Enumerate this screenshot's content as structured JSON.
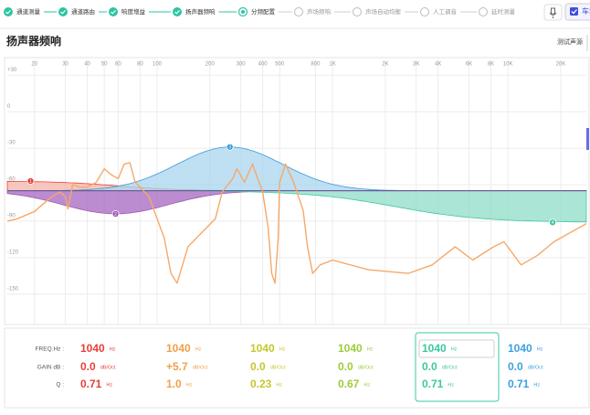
{
  "steps": [
    "通道测量",
    "通道路由",
    "响度增益",
    "扬声器频响",
    "分频配置",
    "声场频响",
    "声场自动均衡",
    "人工调音",
    "延时测量"
  ],
  "current_step": 4,
  "toolbar": {
    "checkbox": "车载"
  },
  "section": {
    "title": "扬声器频响",
    "button": "测试声源"
  },
  "chart_data": {
    "type": "line",
    "xlim": [
      14,
      28000
    ],
    "ylim": [
      -175,
      43
    ],
    "log_x": true,
    "grid": true,
    "xticks": [
      20,
      30,
      40,
      50,
      60,
      80,
      100,
      200,
      300,
      400,
      500,
      800,
      {
        "value": 1000,
        "label": "1K"
      },
      {
        "value": 2000,
        "label": "2K"
      },
      {
        "value": 3000,
        "label": "3K"
      },
      {
        "value": 4000,
        "label": "4K"
      },
      {
        "value": 6000,
        "label": "6K"
      },
      {
        "value": 8000,
        "label": "8K"
      },
      {
        "value": 10000,
        "label": "10K"
      },
      {
        "value": 20000,
        "label": "20K"
      }
    ],
    "yticks": [
      {
        "value": 30,
        "label": "+30"
      },
      0,
      -30,
      -60,
      -90,
      -120,
      -150
    ],
    "baseline": -65,
    "filters": [
      {
        "name": "1",
        "type": "lowshelf",
        "freq": 19,
        "level": -57,
        "color": "#e8403a",
        "fill": "#f6b3a8"
      },
      {
        "name": "2",
        "type": "peak",
        "freq": 58,
        "level": -84,
        "color": "#9b59b6",
        "fill": "#a565c0"
      },
      {
        "name": "3",
        "type": "peak",
        "freq": 260,
        "level": -29,
        "color": "#3a9ad9",
        "fill": "#a9d4ee"
      },
      {
        "name": "4",
        "type": "highshelf",
        "freq": 18000,
        "level": -91,
        "color": "#3cc8a0",
        "fill": "#8fdcc8"
      }
    ],
    "series": [
      {
        "color": "#f5a96a",
        "x": [
          14,
          16,
          20,
          25,
          28,
          30,
          31,
          33,
          36,
          40,
          45,
          50,
          55,
          60,
          65,
          70,
          75,
          80,
          90,
          100,
          110,
          120,
          130,
          150,
          215,
          235,
          270,
          285,
          315,
          350,
          375,
          400,
          430,
          450,
          470,
          490,
          500,
          540,
          600,
          680,
          720,
          770,
          850,
          1000,
          1600,
          2700,
          3700,
          5000,
          6300,
          8300,
          9500,
          11900,
          14800,
          18300,
          28000
        ],
        "values": [
          -90,
          -88,
          -82,
          -70,
          -66,
          -70,
          -80,
          -60,
          -62,
          -62,
          -58,
          -47,
          -52,
          -55,
          -43,
          -42,
          -58,
          -62,
          -70,
          -88,
          -104,
          -133,
          -141,
          -111,
          -88,
          -66,
          -55,
          -47,
          -58,
          -43,
          -55,
          -66,
          -96,
          -133,
          -141,
          -104,
          -58,
          -43,
          -58,
          -81,
          -111,
          -133,
          -126,
          -122,
          -130,
          -133,
          -126,
          -111,
          -122,
          -111,
          -107,
          -126,
          -118,
          -107,
          -92
        ]
      }
    ]
  },
  "table": {
    "rows": [
      {
        "label": "FREQ.Hz :",
        "unit": "Hz"
      },
      {
        "label": "GAIN dB :",
        "unit": "dB/Oct"
      },
      {
        "label": "Q :",
        "unit": "Hz"
      }
    ],
    "selected_column": 4,
    "columns": [
      {
        "color": "#e8403a",
        "values": [
          "1040",
          "0.0",
          "0.71"
        ]
      },
      {
        "color": "#f0a04b",
        "values": [
          "1040",
          "+5.7",
          "1.0"
        ]
      },
      {
        "color": "#c5c72e",
        "values": [
          "1040",
          "0.0",
          "0.23"
        ]
      },
      {
        "color": "#9ccc3a",
        "values": [
          "1040",
          "0.0",
          "0.67"
        ]
      },
      {
        "color": "#3cc8a0",
        "values": [
          "1040",
          "0.0",
          "0.71"
        ]
      },
      {
        "color": "#3aa0e0",
        "values": [
          "1040",
          "0.0",
          "0.71"
        ]
      }
    ]
  }
}
